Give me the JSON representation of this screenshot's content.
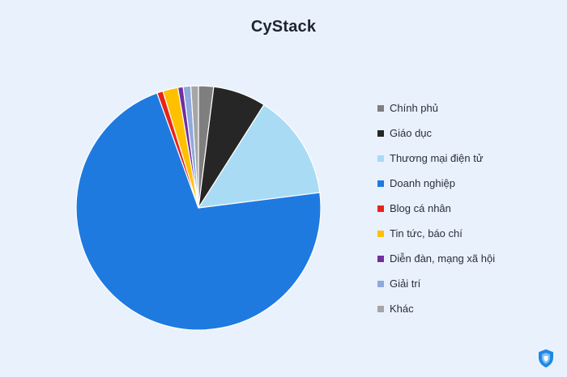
{
  "brand": {
    "name": "CyStack"
  },
  "colors": {
    "background": "#e9f1fc",
    "shield": "#1f88e5"
  },
  "chart_data": {
    "type": "pie",
    "title": "",
    "legend": "right",
    "slices": [
      {
        "label": "Chính phủ",
        "value": 2,
        "color": "#7f7f7f"
      },
      {
        "label": "Giáo dục",
        "value": 7,
        "color": "#262626"
      },
      {
        "label": "Thương mại điện tử",
        "value": 14,
        "color": "#a9dbf5"
      },
      {
        "label": "Doanh nghiệp",
        "value": 71.5,
        "color": "#1f7ae0"
      },
      {
        "label": "Blog cá nhân",
        "value": 0.8,
        "color": "#e8231a"
      },
      {
        "label": "Tin tức, báo chí",
        "value": 2,
        "color": "#ffc000"
      },
      {
        "label": "Diễn đàn, mạng xã hội",
        "value": 0.7,
        "color": "#7030a0"
      },
      {
        "label": "Giải trí",
        "value": 1,
        "color": "#8faadc"
      },
      {
        "label": "Khác",
        "value": 1,
        "color": "#a6a6a6"
      }
    ]
  }
}
